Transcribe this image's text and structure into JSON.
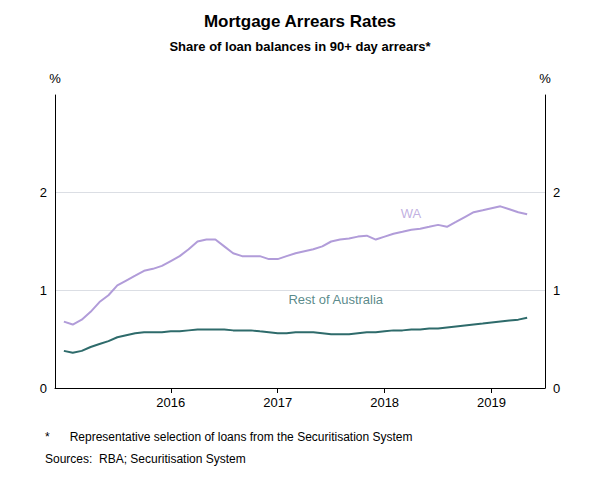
{
  "chart_data": {
    "type": "line",
    "title": "Mortgage Arrears Rates",
    "subtitle": "Share of loan balances in 90+ day arrears*",
    "ylabel": "%",
    "y2label": "%",
    "notes": [
      "*      Representative selection of loans from the Securitisation System",
      "Sources:  RBA; Securitisation System"
    ],
    "x": [
      2015.0,
      2015.083,
      2015.167,
      2015.25,
      2015.333,
      2015.417,
      2015.5,
      2015.583,
      2015.667,
      2015.75,
      2015.833,
      2015.917,
      2016.0,
      2016.083,
      2016.167,
      2016.25,
      2016.333,
      2016.417,
      2016.5,
      2016.583,
      2016.667,
      2016.75,
      2016.833,
      2016.917,
      2017.0,
      2017.083,
      2017.167,
      2017.25,
      2017.333,
      2017.417,
      2017.5,
      2017.583,
      2017.667,
      2017.75,
      2017.833,
      2017.917,
      2018.0,
      2018.083,
      2018.167,
      2018.25,
      2018.333,
      2018.417,
      2018.5,
      2018.583,
      2018.667,
      2018.75,
      2018.833,
      2018.917,
      2019.0,
      2019.083,
      2019.167,
      2019.25,
      2019.333
    ],
    "series": [
      {
        "name": "WA",
        "color": "#b19cd9",
        "values": [
          0.68,
          0.65,
          0.7,
          0.78,
          0.88,
          0.95,
          1.05,
          1.1,
          1.15,
          1.2,
          1.22,
          1.25,
          1.3,
          1.35,
          1.42,
          1.5,
          1.52,
          1.52,
          1.45,
          1.38,
          1.35,
          1.35,
          1.35,
          1.32,
          1.32,
          1.35,
          1.38,
          1.4,
          1.42,
          1.45,
          1.5,
          1.52,
          1.53,
          1.55,
          1.56,
          1.52,
          1.55,
          1.58,
          1.6,
          1.62,
          1.63,
          1.65,
          1.67,
          1.65,
          1.7,
          1.75,
          1.8,
          1.82,
          1.84,
          1.86,
          1.83,
          1.8,
          1.78
        ]
      },
      {
        "name": "Rest of Australia",
        "color": "#2e6b6b",
        "values": [
          0.38,
          0.36,
          0.38,
          0.42,
          0.45,
          0.48,
          0.52,
          0.54,
          0.56,
          0.57,
          0.57,
          0.57,
          0.58,
          0.58,
          0.59,
          0.6,
          0.6,
          0.6,
          0.6,
          0.59,
          0.59,
          0.59,
          0.58,
          0.57,
          0.56,
          0.56,
          0.57,
          0.57,
          0.57,
          0.56,
          0.55,
          0.55,
          0.55,
          0.56,
          0.57,
          0.57,
          0.58,
          0.59,
          0.59,
          0.6,
          0.6,
          0.61,
          0.61,
          0.62,
          0.63,
          0.64,
          0.65,
          0.66,
          0.67,
          0.68,
          0.69,
          0.7,
          0.72
        ]
      }
    ],
    "annotations": [
      {
        "text": "WA",
        "x": 2018.15,
        "y": 1.72,
        "color": "#b19cd9"
      },
      {
        "text": "Rest of Australia",
        "x": 2017.1,
        "y": 0.84,
        "color": "#2e6b6b"
      }
    ],
    "xlim": [
      2014.917,
      2019.5
    ],
    "xticks": [
      2016,
      2017,
      2018,
      2019
    ],
    "ylim": [
      0,
      3.0
    ],
    "yticks": [
      0,
      1,
      2
    ],
    "y2lim": [
      0,
      3.0
    ],
    "y2ticks": [
      0,
      1,
      2
    ],
    "grid": true
  }
}
